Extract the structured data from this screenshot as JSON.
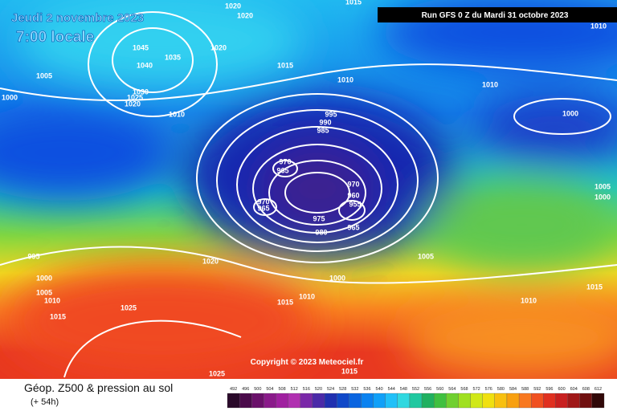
{
  "header": {
    "date": "Jeudi 2 novembre 2023",
    "time": "7:00 locale",
    "run": "Run GFS 0 Z du Mardi 31 octobre 2023",
    "copyright": "Copyright © 2023 Meteociel.fr"
  },
  "legend": {
    "title": "Géop. Z500 & pression au sol",
    "subtitle": "(+ 54h)",
    "labels": [
      492,
      496,
      500,
      504,
      508,
      512,
      516,
      520,
      524,
      528,
      532,
      536,
      540,
      544,
      548,
      552,
      556,
      560,
      564,
      568,
      572,
      576,
      580,
      584,
      588,
      592,
      596,
      600,
      604,
      608,
      612
    ],
    "colors": [
      "#2a0a2a",
      "#4a0a4a",
      "#6a106a",
      "#8a1a8a",
      "#a020a0",
      "#b030b0",
      "#7a28a8",
      "#4b2aa8",
      "#2030b0",
      "#1048c8",
      "#0a64e0",
      "#0a82f0",
      "#10a0f8",
      "#20c0f8",
      "#30d8e0",
      "#20c8a0",
      "#20b060",
      "#40c040",
      "#70d030",
      "#a0e020",
      "#d0e818",
      "#f0e010",
      "#f8c010",
      "#f8a010",
      "#f87820",
      "#f05020",
      "#e03020",
      "#c82020",
      "#a01818",
      "#701010",
      "#300808"
    ]
  },
  "isobars": [
    1020,
    1020,
    1015,
    1010,
    1045,
    1040,
    1035,
    1020,
    1005,
    1000,
    1030,
    1025,
    1020,
    1015,
    1010,
    1010,
    1010,
    995,
    990,
    985,
    1000,
    970,
    965,
    970,
    960,
    955,
    970,
    965,
    975,
    965,
    980,
    1005,
    1000,
    995,
    1020,
    1005,
    1000,
    1000,
    1005,
    1010,
    1010,
    1015,
    1015,
    1010,
    1025,
    1015,
    1025,
    1015
  ]
}
